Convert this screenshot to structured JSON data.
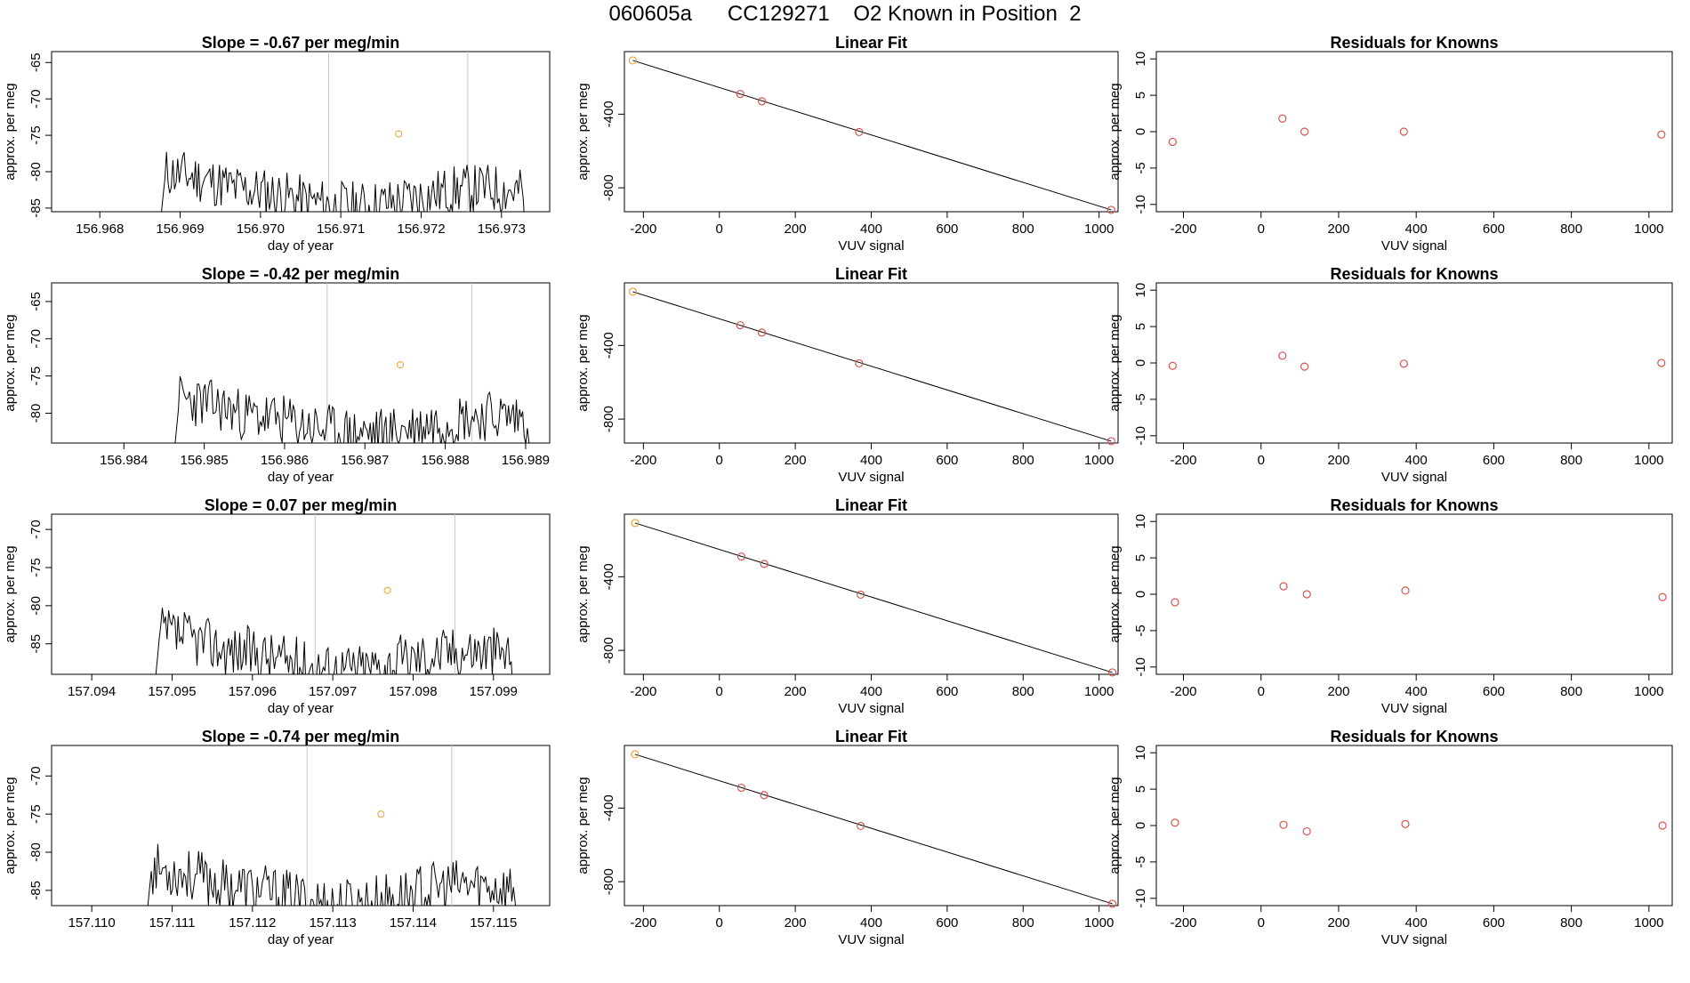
{
  "page": {
    "title": "060605a      CC129271    O2 Known in Position  2"
  },
  "style": {
    "line_color": "#000000",
    "point_color": "#d9534f",
    "highlight_color": "#f0a030",
    "marker_line_color": "#c8c8c8"
  },
  "chart_data": [
    {
      "id": "r1-ts",
      "type": "line",
      "title": "Slope =  -0.67  per meg/min",
      "xlabel": "day of year",
      "ylabel": "approx. per meg",
      "xlim": [
        156.9674,
        156.9736
      ],
      "ylim": [
        -85.5,
        -63.5
      ],
      "xticks": [
        "156.968",
        "156.969",
        "156.970",
        "156.971",
        "156.972",
        "156.973"
      ],
      "yticks": [
        "-65",
        "-70",
        "-75",
        "-80",
        "-85"
      ],
      "start": 156.96875,
      "end": 156.97335,
      "vlines": [
        156.97085,
        156.97258
      ],
      "base": -77,
      "highlight": [
        156.97172,
        -74.8
      ],
      "seed": 11
    },
    {
      "id": "r1-fit",
      "type": "scatter",
      "title": "Linear Fit",
      "xlabel": "VUV signal",
      "ylabel": "approx. per meg",
      "xlim": [
        -250,
        1050
      ],
      "ylim": [
        -930,
        -60
      ],
      "xticks": [
        "-200",
        "0",
        "200",
        "400",
        "600",
        "800",
        "1000"
      ],
      "yticks": [
        "-400",
        "-800"
      ],
      "x": [
        -228,
        55,
        112,
        368,
        1032
      ],
      "y": [
        -108,
        -290,
        -330,
        -497,
        -920
      ],
      "line": [
        [
          -228,
          -108
        ],
        [
          1032,
          -920
        ]
      ]
    },
    {
      "id": "r1-res",
      "type": "scatter",
      "title": "Residuals for Knowns",
      "xlabel": "VUV signal",
      "ylabel": "approx. per meg",
      "xlim": [
        -270,
        1060
      ],
      "ylim": [
        -11,
        11
      ],
      "xticks": [
        "-200",
        "0",
        "200",
        "400",
        "600",
        "800",
        "1000"
      ],
      "yticks": [
        "10",
        "5",
        "0",
        "-5",
        "-10"
      ],
      "x": [
        -228,
        55,
        112,
        368,
        1032
      ],
      "y": [
        -1.4,
        1.8,
        0.0,
        0.0,
        -0.4
      ]
    },
    {
      "id": "r2-ts",
      "type": "line",
      "title": "Slope =  -0.42  per meg/min",
      "xlabel": "day of year",
      "ylabel": "approx. per meg",
      "xlim": [
        156.9831,
        156.9893
      ],
      "ylim": [
        -84,
        -62.5
      ],
      "xticks": [
        "156.984",
        "156.985",
        "156.986",
        "156.987",
        "156.988",
        "156.989"
      ],
      "yticks": [
        "-65",
        "-70",
        "-75",
        "-80"
      ],
      "start": 156.98462,
      "end": 156.98912,
      "vlines": [
        156.98653,
        156.98833
      ],
      "base": -75,
      "highlight": [
        156.98744,
        -73.5
      ],
      "seed": 23
    },
    {
      "id": "r2-fit",
      "type": "scatter",
      "title": "Linear Fit",
      "xlabel": "VUV signal",
      "ylabel": "approx. per meg",
      "xlim": [
        -250,
        1050
      ],
      "ylim": [
        -930,
        -60
      ],
      "xticks": [
        "-200",
        "0",
        "200",
        "400",
        "600",
        "800",
        "1000"
      ],
      "yticks": [
        "-400",
        "-800"
      ],
      "x": [
        -228,
        55,
        112,
        368,
        1032
      ],
      "y": [
        -108,
        -290,
        -330,
        -497,
        -920
      ],
      "line": [
        [
          -228,
          -108
        ],
        [
          1032,
          -920
        ]
      ]
    },
    {
      "id": "r2-res",
      "type": "scatter",
      "title": "Residuals for Knowns",
      "xlabel": "VUV signal",
      "ylabel": "approx. per meg",
      "xlim": [
        -270,
        1060
      ],
      "ylim": [
        -11,
        11
      ],
      "xticks": [
        "-200",
        "0",
        "200",
        "400",
        "600",
        "800",
        "1000"
      ],
      "yticks": [
        "10",
        "5",
        "0",
        "-5",
        "-10"
      ],
      "x": [
        -228,
        55,
        112,
        368,
        1032
      ],
      "y": [
        -0.4,
        1.0,
        -0.5,
        -0.1,
        0.0
      ]
    },
    {
      "id": "r3-ts",
      "type": "line",
      "title": "Slope =  0.07  per meg/min",
      "xlabel": "day of year",
      "ylabel": "approx. per meg",
      "xlim": [
        157.0935,
        157.0997
      ],
      "ylim": [
        -89,
        -68
      ],
      "xticks": [
        "157.094",
        "157.095",
        "157.096",
        "157.097",
        "157.098",
        "157.099"
      ],
      "yticks": [
        "-70",
        "-75",
        "-80",
        "-85"
      ],
      "start": 157.09478,
      "end": 157.0993,
      "vlines": [
        157.09678,
        157.09852
      ],
      "base": -80.5,
      "highlight": [
        157.09768,
        -78.0
      ],
      "seed": 37
    },
    {
      "id": "r3-fit",
      "type": "scatter",
      "title": "Linear Fit",
      "xlabel": "VUV signal",
      "ylabel": "approx. per meg",
      "xlim": [
        -250,
        1050
      ],
      "ylim": [
        -930,
        -60
      ],
      "xticks": [
        "-200",
        "0",
        "200",
        "400",
        "600",
        "800",
        "1000"
      ],
      "yticks": [
        "-400",
        "-800"
      ],
      "x": [
        -222,
        58,
        118,
        372,
        1035
      ],
      "y": [
        -108,
        -290,
        -330,
        -497,
        -920
      ],
      "line": [
        [
          -222,
          -108
        ],
        [
          1035,
          -920
        ]
      ]
    },
    {
      "id": "r3-res",
      "type": "scatter",
      "title": "Residuals for Knowns",
      "xlabel": "VUV signal",
      "ylabel": "approx. per meg",
      "xlim": [
        -270,
        1060
      ],
      "ylim": [
        -11,
        11
      ],
      "xticks": [
        "-200",
        "0",
        "200",
        "400",
        "600",
        "800",
        "1000"
      ],
      "yticks": [
        "10",
        "5",
        "0",
        "-5",
        "-10"
      ],
      "x": [
        -222,
        58,
        118,
        372,
        1035
      ],
      "y": [
        -1.1,
        1.1,
        0.0,
        0.5,
        -0.4
      ]
    },
    {
      "id": "r4-ts",
      "type": "line",
      "title": "Slope =  -0.74  per meg/min",
      "xlabel": "day of year",
      "ylabel": "approx. per meg",
      "xlim": [
        157.1095,
        157.1157
      ],
      "ylim": [
        -87,
        -66
      ],
      "xticks": [
        "157.110",
        "157.111",
        "157.112",
        "157.113",
        "157.114",
        "157.115"
      ],
      "yticks": [
        "-70",
        "-75",
        "-80",
        "-85"
      ],
      "start": 157.11068,
      "end": 157.11535,
      "vlines": [
        157.11268,
        157.11448
      ],
      "base": -79,
      "highlight": [
        157.1136,
        -75.0
      ],
      "seed": 53
    },
    {
      "id": "r4-fit",
      "type": "scatter",
      "title": "Linear Fit",
      "xlabel": "VUV signal",
      "ylabel": "approx. per meg",
      "xlim": [
        -250,
        1050
      ],
      "ylim": [
        -930,
        -60
      ],
      "xticks": [
        "-200",
        "0",
        "200",
        "400",
        "600",
        "800",
        "1000"
      ],
      "yticks": [
        "-400",
        "-800"
      ],
      "x": [
        -222,
        58,
        118,
        372,
        1035
      ],
      "y": [
        -108,
        -290,
        -330,
        -497,
        -920
      ],
      "line": [
        [
          -222,
          -108
        ],
        [
          1035,
          -920
        ]
      ]
    },
    {
      "id": "r4-res",
      "type": "scatter",
      "title": "Residuals for Knowns",
      "xlabel": "VUV signal",
      "ylabel": "approx. per meg",
      "xlim": [
        -270,
        1060
      ],
      "ylim": [
        -11,
        11
      ],
      "xticks": [
        "-200",
        "0",
        "200",
        "400",
        "600",
        "800",
        "1000"
      ],
      "yticks": [
        "10",
        "5",
        "0",
        "-5",
        "-10"
      ],
      "x": [
        -222,
        58,
        118,
        372,
        1035
      ],
      "y": [
        0.4,
        0.1,
        -0.8,
        0.2,
        0.0
      ]
    }
  ]
}
